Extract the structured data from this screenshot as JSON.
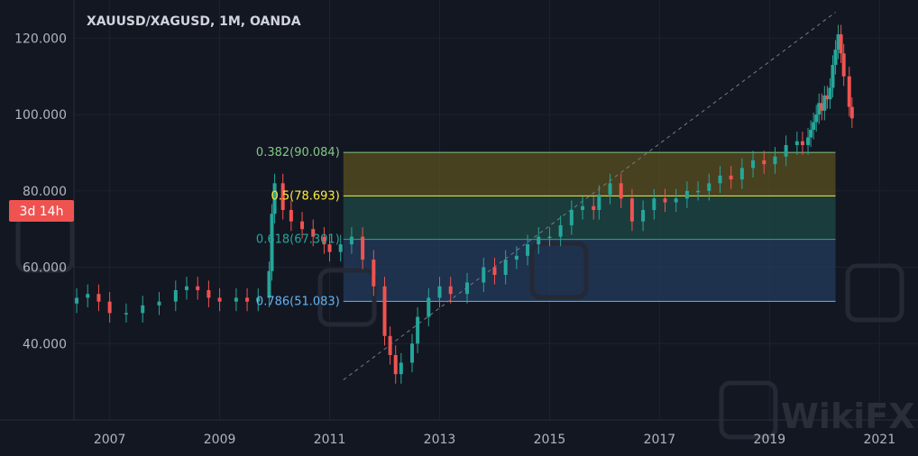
{
  "chart_data": {
    "type": "candlestick",
    "title": "XAUUSD/XAGUSD, 1M, OANDA",
    "countdown_badge": "3d 14h",
    "colors": {
      "background": "#131722",
      "up": "#26a69a",
      "down": "#ef5350",
      "grid": "#1e222d",
      "axis_text": "#b2b5be",
      "badge": "#ef5350"
    },
    "y_axis": {
      "ticks": [
        "40.000",
        "60.000",
        "80.000",
        "100.000",
        "120.000"
      ],
      "tick_values": [
        40,
        60,
        80,
        100,
        120
      ],
      "ylim": [
        20,
        130
      ]
    },
    "x_axis": {
      "ticks": [
        "2007",
        "2009",
        "2011",
        "2013",
        "2015",
        "2017",
        "2019",
        "2021"
      ],
      "tick_values": [
        2007,
        2009,
        2011,
        2013,
        2015,
        2017,
        2019,
        2021
      ],
      "xlim": [
        2006.35,
        2021.7
      ]
    },
    "series_close_approx": [
      [
        2006.4,
        52
      ],
      [
        2006.6,
        53
      ],
      [
        2006.8,
        51
      ],
      [
        2007.0,
        48
      ],
      [
        2007.3,
        48
      ],
      [
        2007.6,
        50
      ],
      [
        2007.9,
        51
      ],
      [
        2008.2,
        54
      ],
      [
        2008.4,
        55
      ],
      [
        2008.6,
        54
      ],
      [
        2008.8,
        52
      ],
      [
        2009.0,
        51
      ],
      [
        2009.3,
        52
      ],
      [
        2009.5,
        51
      ],
      [
        2009.7,
        52
      ],
      [
        2009.9,
        59
      ],
      [
        2009.95,
        74
      ],
      [
        2010.0,
        82
      ],
      [
        2010.15,
        75
      ],
      [
        2010.3,
        72
      ],
      [
        2010.5,
        70
      ],
      [
        2010.7,
        68
      ],
      [
        2010.9,
        66
      ],
      [
        2011.0,
        64
      ],
      [
        2011.2,
        66
      ],
      [
        2011.4,
        68
      ],
      [
        2011.6,
        62
      ],
      [
        2011.8,
        55
      ],
      [
        2012.0,
        42
      ],
      [
        2012.1,
        37
      ],
      [
        2012.2,
        32
      ],
      [
        2012.3,
        35
      ],
      [
        2012.5,
        40
      ],
      [
        2012.6,
        47
      ],
      [
        2012.8,
        52
      ],
      [
        2013.0,
        55
      ],
      [
        2013.2,
        53
      ],
      [
        2013.5,
        56
      ],
      [
        2013.8,
        60
      ],
      [
        2014.0,
        58
      ],
      [
        2014.2,
        62
      ],
      [
        2014.4,
        63
      ],
      [
        2014.6,
        66
      ],
      [
        2014.8,
        68
      ],
      [
        2015.0,
        68
      ],
      [
        2015.2,
        71
      ],
      [
        2015.4,
        75
      ],
      [
        2015.6,
        76
      ],
      [
        2015.8,
        75
      ],
      [
        2015.9,
        79
      ],
      [
        2016.1,
        82
      ],
      [
        2016.3,
        78
      ],
      [
        2016.5,
        72
      ],
      [
        2016.7,
        75
      ],
      [
        2016.9,
        78
      ],
      [
        2017.1,
        77
      ],
      [
        2017.3,
        78
      ],
      [
        2017.5,
        80
      ],
      [
        2017.7,
        80
      ],
      [
        2017.9,
        82
      ],
      [
        2018.1,
        84
      ],
      [
        2018.3,
        83
      ],
      [
        2018.5,
        86
      ],
      [
        2018.7,
        88
      ],
      [
        2018.9,
        87
      ],
      [
        2019.1,
        89
      ],
      [
        2019.3,
        92
      ],
      [
        2019.5,
        93
      ],
      [
        2019.6,
        92
      ],
      [
        2019.7,
        94
      ],
      [
        2019.75,
        96
      ],
      [
        2019.8,
        98
      ],
      [
        2019.85,
        100
      ],
      [
        2019.9,
        103
      ],
      [
        2019.95,
        101
      ],
      [
        2020.0,
        105
      ],
      [
        2020.05,
        104
      ],
      [
        2020.1,
        107
      ],
      [
        2020.15,
        113
      ],
      [
        2020.2,
        117
      ],
      [
        2020.25,
        121
      ],
      [
        2020.3,
        116
      ],
      [
        2020.35,
        110
      ],
      [
        2020.45,
        102
      ],
      [
        2020.5,
        99
      ]
    ],
    "fibonacci": {
      "levels": [
        {
          "label": "0.382(90.084)",
          "value": 90.084,
          "color": "#81c784"
        },
        {
          "label": "0.5(78.693)",
          "value": 78.693,
          "color": "#ffeb3b"
        },
        {
          "label": "0.618(67.301)",
          "value": 67.301,
          "color": "#26a69a"
        },
        {
          "label": "0.786(51.083)",
          "value": 51.083,
          "color": "#64b5f6"
        }
      ],
      "x_start": 2011.25,
      "x_end": 2020.2,
      "trend_from": {
        "x": 2011.25,
        "y": 30.5
      },
      "trend_to": {
        "x": 2020.2,
        "y": 126.8
      }
    },
    "grid": true,
    "legend": "none"
  },
  "watermark": {
    "text": "WikiFX"
  }
}
